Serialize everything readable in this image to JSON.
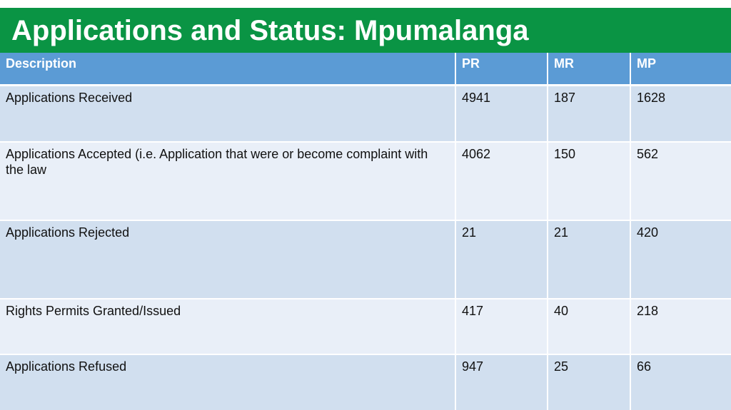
{
  "slide": {
    "title": "Applications and Status: Mpumalanga"
  },
  "table": {
    "headers": [
      "Description",
      "PR",
      "MR",
      "MP"
    ],
    "rows": [
      {
        "description": "Applications Received",
        "pr": "4941",
        "mr": "187",
        "mp": "1628"
      },
      {
        "description": "Applications Accepted (i.e. Application that were or become complaint with the law",
        "pr": "4062",
        "mr": "150",
        "mp": "562"
      },
      {
        "description": "Applications Rejected",
        "pr": "21",
        "mr": "21",
        "mp": "420"
      },
      {
        "description": "Rights Permits Granted/Issued",
        "pr": "417",
        "mr": "40",
        "mp": "218"
      },
      {
        "description": "Applications Refused",
        "pr": "947",
        "mr": "25",
        "mp": "66"
      }
    ]
  },
  "colors": {
    "title_bar": "#0a9444",
    "header_row": "#5b9bd5",
    "row_odd": "#d1dfef",
    "row_even": "#e9eff8"
  }
}
